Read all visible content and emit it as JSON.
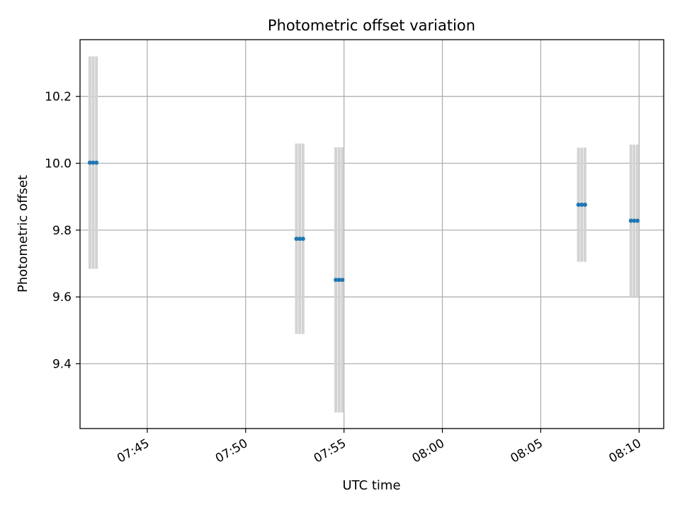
{
  "chart_data": {
    "type": "scatter",
    "title": "Photometric offset variation",
    "xlabel": "UTC time",
    "ylabel": "Photometric offset",
    "x_axis_type": "time",
    "xlim": [
      "07:41:35",
      "08:11:15"
    ],
    "ylim": [
      9.206,
      10.37
    ],
    "x_ticks": [
      "07:45",
      "07:50",
      "07:55",
      "08:00",
      "08:05",
      "08:10"
    ],
    "y_ticks": [
      9.4,
      9.6,
      9.8,
      10.0,
      10.2
    ],
    "y_tick_labels": [
      "9.4",
      "9.6",
      "9.8",
      "10.0",
      "10.2"
    ],
    "grid": true,
    "point_color": "#1f77b4",
    "errorbar_color": "#d3d3d3",
    "groups": [
      {
        "times": [
          "07:42:05",
          "07:42:15",
          "07:42:25"
        ],
        "y": 10.002,
        "err": 0.318
      },
      {
        "times": [
          "07:52:35",
          "07:52:45",
          "07:52:55"
        ],
        "y": 9.774,
        "err": 0.285
      },
      {
        "times": [
          "07:54:35",
          "07:54:45",
          "07:54:55"
        ],
        "y": 9.651,
        "err": 0.397
      },
      {
        "times": [
          "08:06:55",
          "08:07:05",
          "08:07:15"
        ],
        "y": 9.876,
        "err": 0.171
      },
      {
        "times": [
          "08:09:35",
          "08:09:45",
          "08:09:55"
        ],
        "y": 9.828,
        "err": 0.228
      }
    ]
  }
}
